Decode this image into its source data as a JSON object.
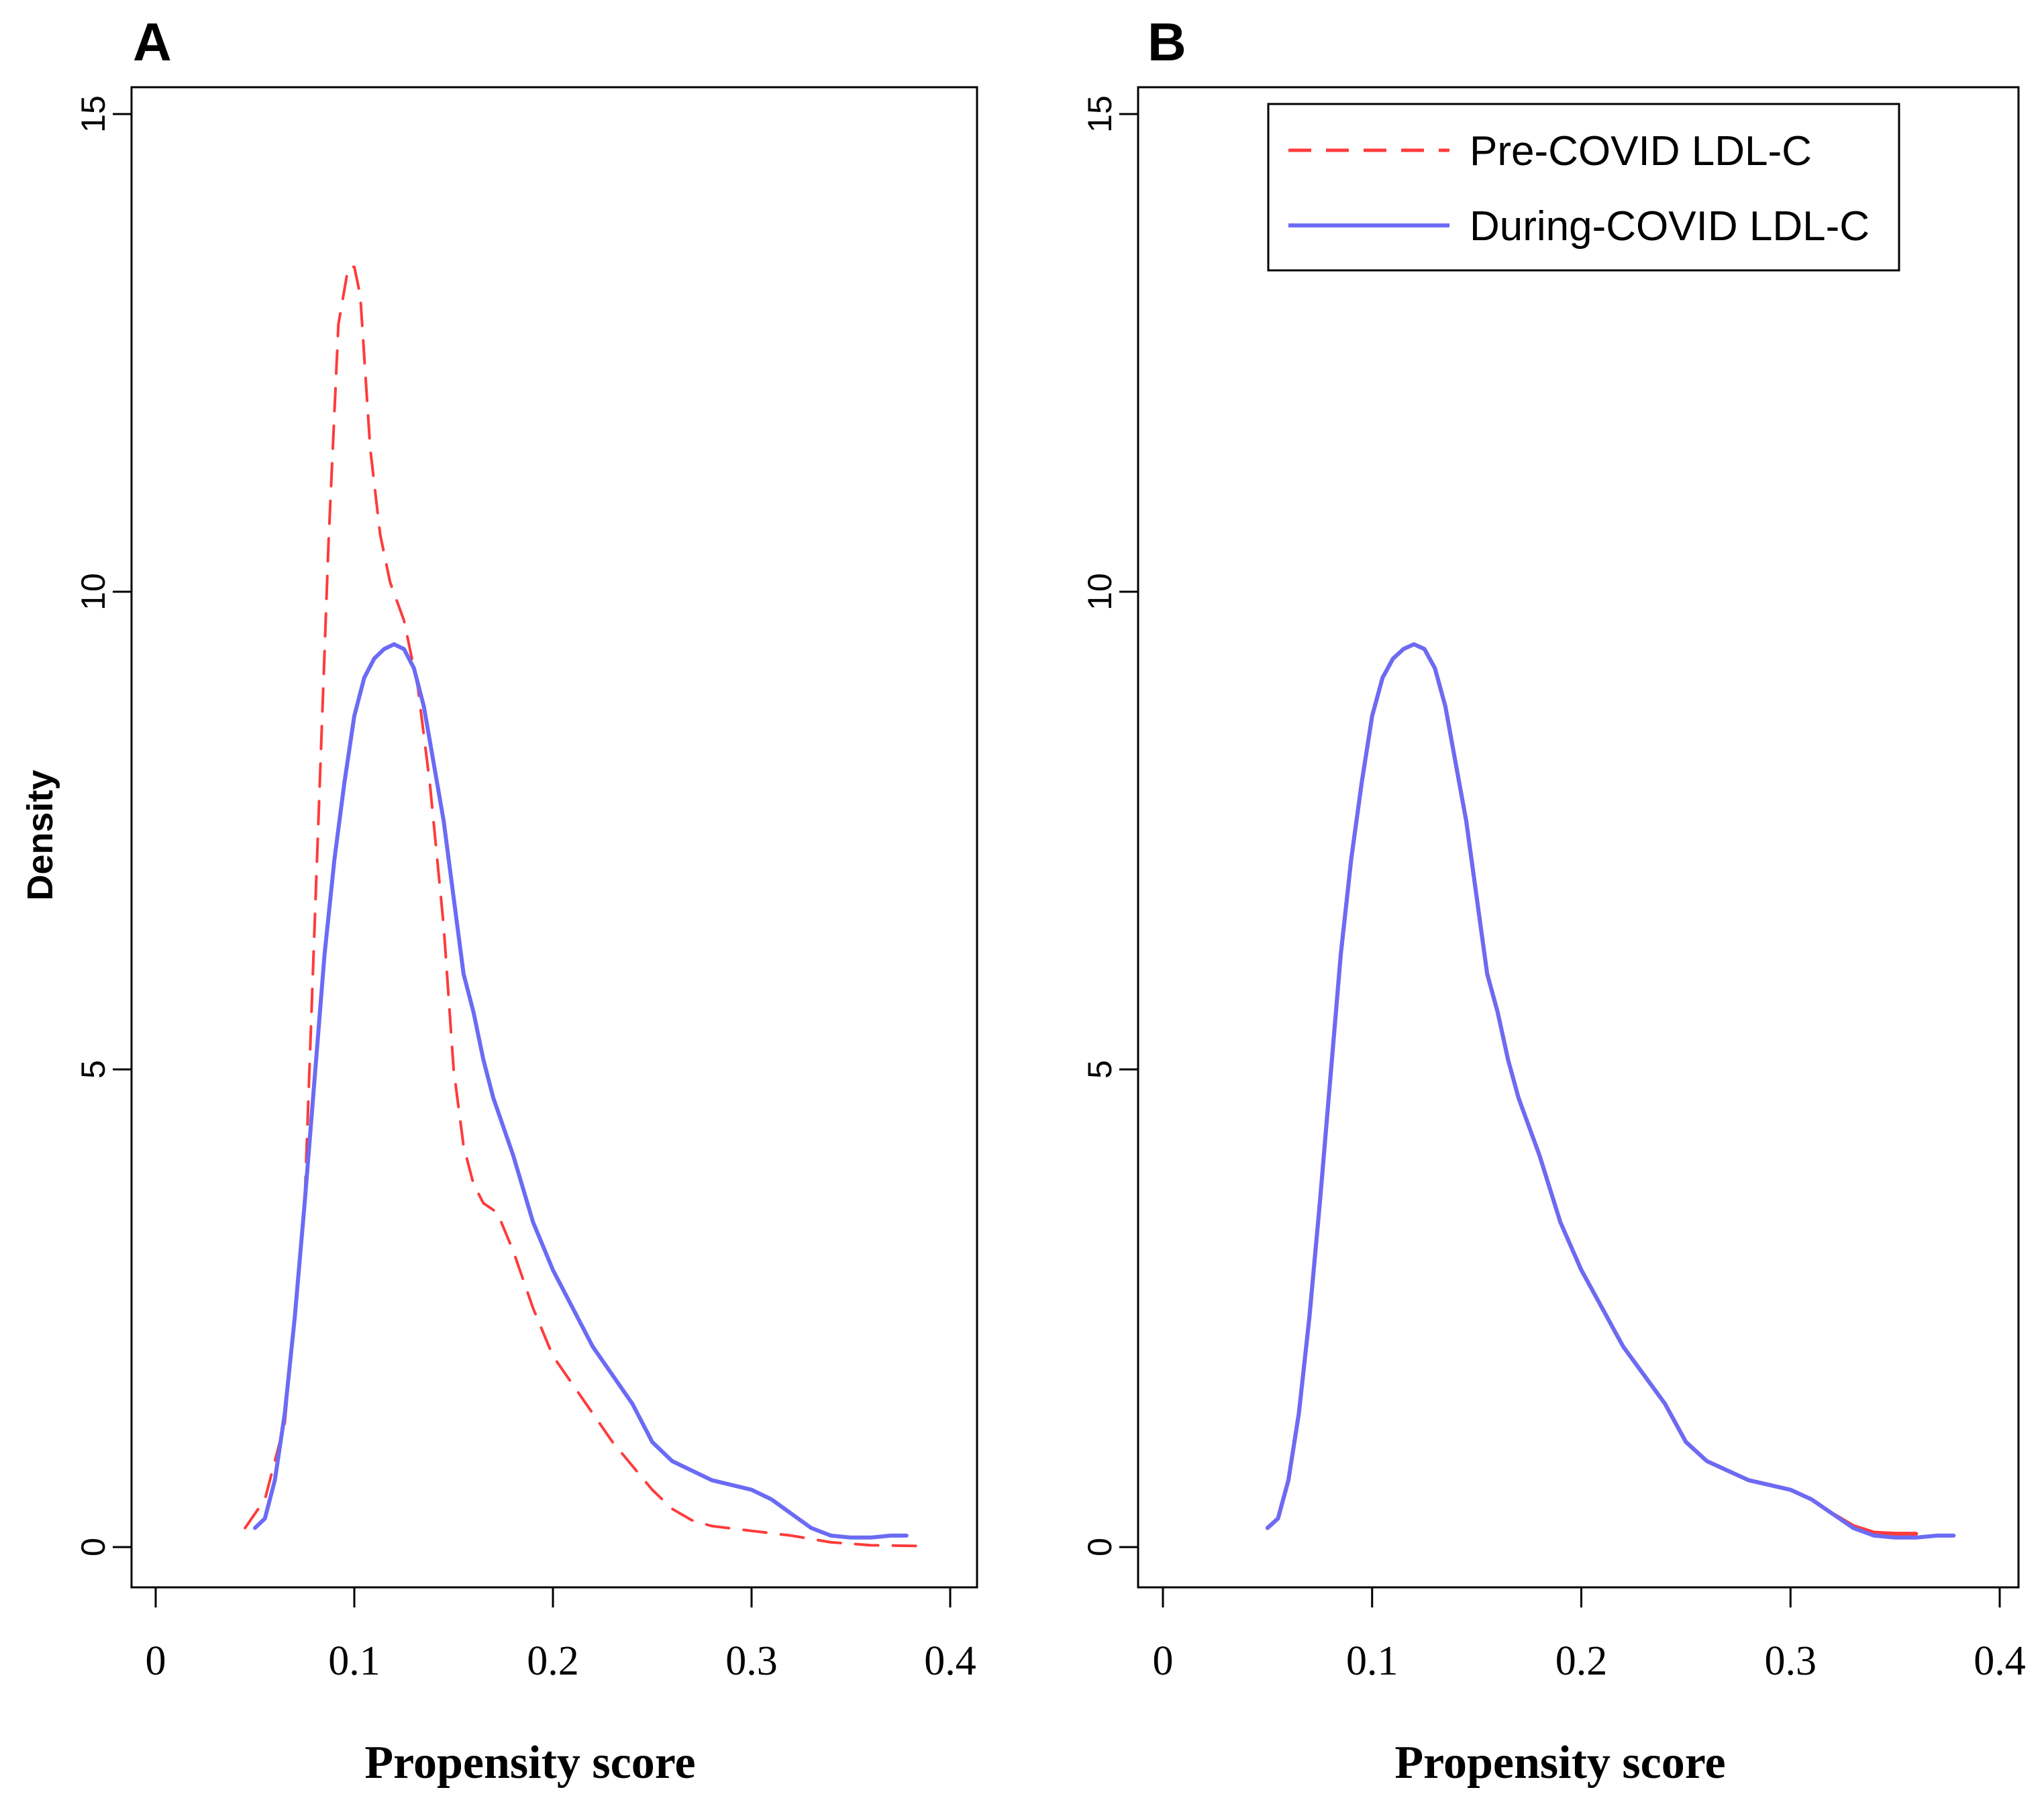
{
  "chart_data": [
    {
      "panel": "A",
      "type": "line",
      "title": "A",
      "xlabel": "Propensity score",
      "ylabel": "Density",
      "xlim": [
        0,
        0.4
      ],
      "ylim": [
        0,
        15
      ],
      "xticks": [
        "0",
        "0.1",
        "0.2",
        "0.3",
        "0.4"
      ],
      "yticks": [
        "0",
        "5",
        "10",
        "15"
      ],
      "grid": false,
      "series": [
        {
          "name": "Pre-COVID LDL-C",
          "color": "#ff3b3b",
          "style": "dashed",
          "points": [
            [
              0.045,
              0.2
            ],
            [
              0.055,
              0.5
            ],
            [
              0.065,
              1.3
            ],
            [
              0.075,
              3.6
            ],
            [
              0.08,
              6.5
            ],
            [
              0.087,
              10.5
            ],
            [
              0.092,
              12.8
            ],
            [
              0.097,
              13.4
            ],
            [
              0.1,
              13.4
            ],
            [
              0.103,
              13.1
            ],
            [
              0.108,
              11.5
            ],
            [
              0.113,
              10.6
            ],
            [
              0.118,
              10.1
            ],
            [
              0.125,
              9.7
            ],
            [
              0.132,
              9.0
            ],
            [
              0.138,
              8.0
            ],
            [
              0.145,
              6.5
            ],
            [
              0.15,
              5.0
            ],
            [
              0.155,
              4.2
            ],
            [
              0.16,
              3.8
            ],
            [
              0.165,
              3.6
            ],
            [
              0.172,
              3.5
            ],
            [
              0.18,
              3.1
            ],
            [
              0.19,
              2.5
            ],
            [
              0.2,
              2.0
            ],
            [
              0.21,
              1.7
            ],
            [
              0.22,
              1.4
            ],
            [
              0.23,
              1.1
            ],
            [
              0.24,
              0.85
            ],
            [
              0.25,
              0.6
            ],
            [
              0.26,
              0.4
            ],
            [
              0.27,
              0.28
            ],
            [
              0.28,
              0.22
            ],
            [
              0.3,
              0.17
            ],
            [
              0.32,
              0.12
            ],
            [
              0.34,
              0.05
            ],
            [
              0.36,
              0.02
            ],
            [
              0.39,
              0.01
            ]
          ]
        },
        {
          "name": "During-COVID LDL-C",
          "color": "#6b6bf5",
          "style": "solid",
          "points": [
            [
              0.05,
              0.2
            ],
            [
              0.055,
              0.3
            ],
            [
              0.06,
              0.7
            ],
            [
              0.065,
              1.4
            ],
            [
              0.07,
              2.4
            ],
            [
              0.075,
              3.6
            ],
            [
              0.08,
              4.9
            ],
            [
              0.085,
              6.2
            ],
            [
              0.09,
              7.2
            ],
            [
              0.095,
              8.0
            ],
            [
              0.1,
              8.7
            ],
            [
              0.105,
              9.1
            ],
            [
              0.11,
              9.3
            ],
            [
              0.115,
              9.4
            ],
            [
              0.12,
              9.45
            ],
            [
              0.125,
              9.4
            ],
            [
              0.13,
              9.2
            ],
            [
              0.135,
              8.8
            ],
            [
              0.14,
              8.2
            ],
            [
              0.145,
              7.6
            ],
            [
              0.15,
              6.8
            ],
            [
              0.155,
              6.0
            ],
            [
              0.16,
              5.6
            ],
            [
              0.165,
              5.1
            ],
            [
              0.17,
              4.7
            ],
            [
              0.18,
              4.1
            ],
            [
              0.19,
              3.4
            ],
            [
              0.2,
              2.9
            ],
            [
              0.21,
              2.5
            ],
            [
              0.22,
              2.1
            ],
            [
              0.23,
              1.8
            ],
            [
              0.24,
              1.5
            ],
            [
              0.25,
              1.1
            ],
            [
              0.26,
              0.9
            ],
            [
              0.27,
              0.8
            ],
            [
              0.28,
              0.7
            ],
            [
              0.29,
              0.65
            ],
            [
              0.3,
              0.6
            ],
            [
              0.31,
              0.5
            ],
            [
              0.32,
              0.35
            ],
            [
              0.33,
              0.2
            ],
            [
              0.34,
              0.12
            ],
            [
              0.35,
              0.1
            ],
            [
              0.36,
              0.1
            ],
            [
              0.37,
              0.12
            ],
            [
              0.378,
              0.12
            ]
          ]
        }
      ]
    },
    {
      "panel": "B",
      "type": "line",
      "title": "B",
      "xlabel": "Propensity score",
      "ylabel": "",
      "xlim": [
        0,
        0.4
      ],
      "ylim": [
        0,
        15
      ],
      "xticks": [
        "0",
        "0.1",
        "0.2",
        "0.3",
        "0.4"
      ],
      "yticks": [
        "0",
        "5",
        "10",
        "15"
      ],
      "grid": false,
      "legend": {
        "position": "top-right",
        "entries": [
          "Pre-COVID LDL-C",
          "During-COVID LDL-C"
        ]
      },
      "series": [
        {
          "name": "Pre-COVID LDL-C",
          "color": "#ff3b3b",
          "style": "solid",
          "points": [
            [
              0.05,
              0.2
            ],
            [
              0.055,
              0.3
            ],
            [
              0.06,
              0.7
            ],
            [
              0.065,
              1.4
            ],
            [
              0.07,
              2.4
            ],
            [
              0.075,
              3.6
            ],
            [
              0.08,
              4.9
            ],
            [
              0.085,
              6.2
            ],
            [
              0.09,
              7.2
            ],
            [
              0.095,
              8.0
            ],
            [
              0.1,
              8.7
            ],
            [
              0.105,
              9.1
            ],
            [
              0.11,
              9.3
            ],
            [
              0.115,
              9.4
            ],
            [
              0.12,
              9.45
            ],
            [
              0.125,
              9.4
            ],
            [
              0.13,
              9.2
            ],
            [
              0.135,
              8.8
            ],
            [
              0.14,
              8.2
            ],
            [
              0.145,
              7.6
            ],
            [
              0.15,
              6.8
            ],
            [
              0.155,
              6.0
            ],
            [
              0.16,
              5.6
            ],
            [
              0.165,
              5.1
            ],
            [
              0.17,
              4.7
            ],
            [
              0.18,
              4.1
            ],
            [
              0.19,
              3.4
            ],
            [
              0.2,
              2.9
            ],
            [
              0.21,
              2.5
            ],
            [
              0.22,
              2.1
            ],
            [
              0.23,
              1.8
            ],
            [
              0.24,
              1.5
            ],
            [
              0.25,
              1.1
            ],
            [
              0.26,
              0.9
            ],
            [
              0.27,
              0.8
            ],
            [
              0.28,
              0.7
            ],
            [
              0.29,
              0.65
            ],
            [
              0.3,
              0.6
            ],
            [
              0.31,
              0.5
            ],
            [
              0.32,
              0.35
            ],
            [
              0.33,
              0.22
            ],
            [
              0.34,
              0.15
            ],
            [
              0.35,
              0.14
            ],
            [
              0.36,
              0.14
            ]
          ]
        },
        {
          "name": "During-COVID LDL-C",
          "color": "#6b6bf5",
          "style": "solid",
          "points": [
            [
              0.05,
              0.2
            ],
            [
              0.055,
              0.3
            ],
            [
              0.06,
              0.7
            ],
            [
              0.065,
              1.4
            ],
            [
              0.07,
              2.4
            ],
            [
              0.075,
              3.6
            ],
            [
              0.08,
              4.9
            ],
            [
              0.085,
              6.2
            ],
            [
              0.09,
              7.2
            ],
            [
              0.095,
              8.0
            ],
            [
              0.1,
              8.7
            ],
            [
              0.105,
              9.1
            ],
            [
              0.11,
              9.3
            ],
            [
              0.115,
              9.4
            ],
            [
              0.12,
              9.45
            ],
            [
              0.125,
              9.4
            ],
            [
              0.13,
              9.2
            ],
            [
              0.135,
              8.8
            ],
            [
              0.14,
              8.2
            ],
            [
              0.145,
              7.6
            ],
            [
              0.15,
              6.8
            ],
            [
              0.155,
              6.0
            ],
            [
              0.16,
              5.6
            ],
            [
              0.165,
              5.1
            ],
            [
              0.17,
              4.7
            ],
            [
              0.18,
              4.1
            ],
            [
              0.19,
              3.4
            ],
            [
              0.2,
              2.9
            ],
            [
              0.21,
              2.5
            ],
            [
              0.22,
              2.1
            ],
            [
              0.23,
              1.8
            ],
            [
              0.24,
              1.5
            ],
            [
              0.25,
              1.1
            ],
            [
              0.26,
              0.9
            ],
            [
              0.27,
              0.8
            ],
            [
              0.28,
              0.7
            ],
            [
              0.29,
              0.65
            ],
            [
              0.3,
              0.6
            ],
            [
              0.31,
              0.5
            ],
            [
              0.32,
              0.35
            ],
            [
              0.33,
              0.2
            ],
            [
              0.34,
              0.12
            ],
            [
              0.35,
              0.1
            ],
            [
              0.36,
              0.1
            ],
            [
              0.37,
              0.12
            ],
            [
              0.378,
              0.12
            ]
          ]
        }
      ]
    }
  ]
}
